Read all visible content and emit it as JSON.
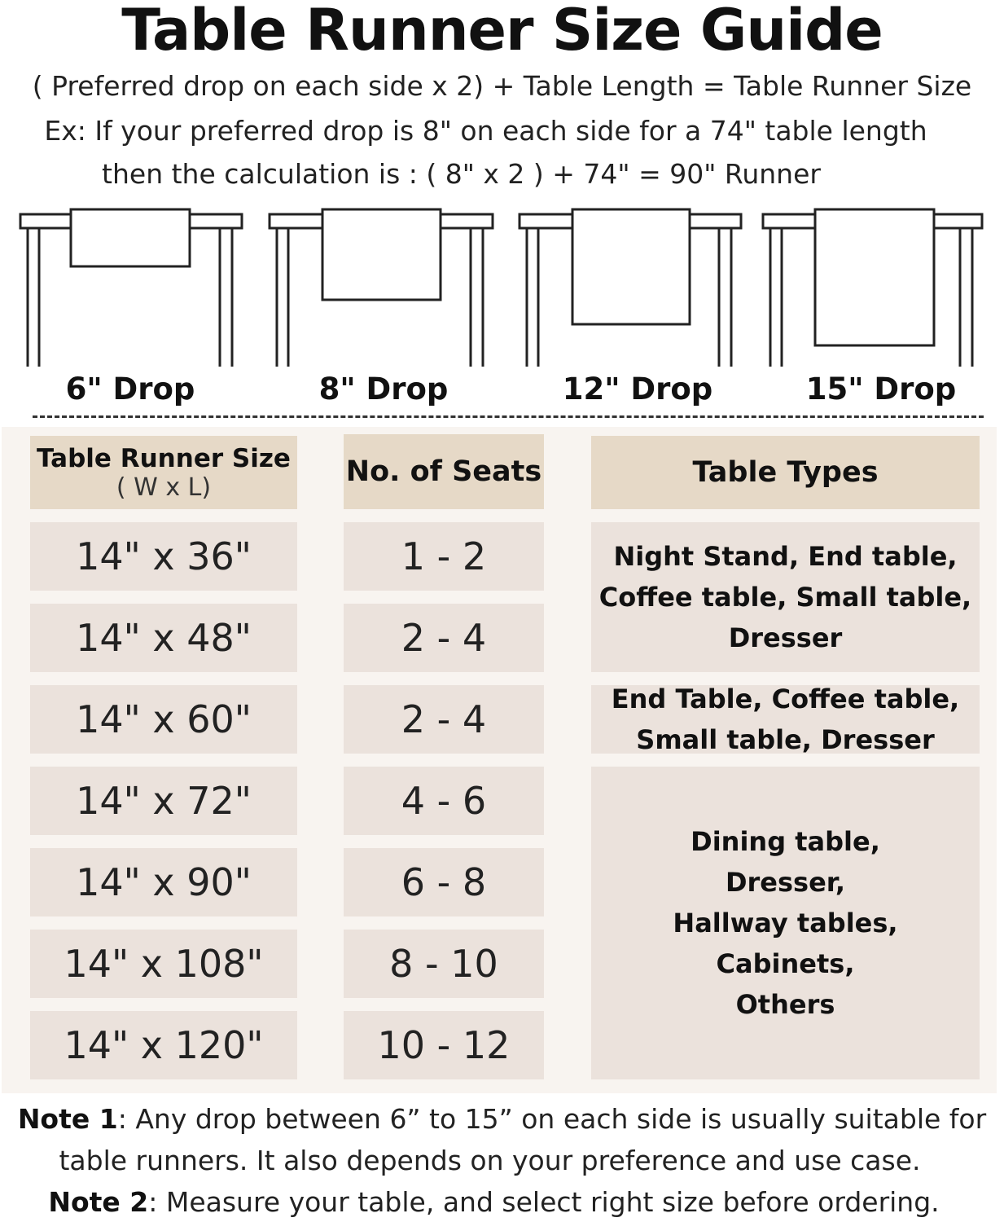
{
  "title": "Table Runner Size Guide",
  "formula": "( Preferred drop on each side x 2) + Table Length = Table Runner Size",
  "example_line1": "Ex: If your preferred drop is 8\" on each side for a 74\" table length",
  "example_line2": "then the calculation is : ( 8\" x 2 ) + 74\" = 90\" Runner",
  "drops": [
    "6\" Drop",
    "8\" Drop",
    "12\" Drop",
    "15\" Drop"
  ],
  "table": {
    "headers": {
      "size": "Table Runner Size",
      "size_sub": "( W x L)",
      "seats": "No. of Seats",
      "types": "Table Types"
    },
    "rows": [
      {
        "size": "14\" x 36\"",
        "seats": "1 - 2"
      },
      {
        "size": "14\" x 48\"",
        "seats": "2 - 4"
      },
      {
        "size": "14\" x 60\"",
        "seats": "2 - 4"
      },
      {
        "size": "14\" x 72\"",
        "seats": "4 - 6"
      },
      {
        "size": "14\" x 90\"",
        "seats": "6 - 8"
      },
      {
        "size": "14\" x 108\"",
        "seats": "8 - 10"
      },
      {
        "size": "14\" x 120\"",
        "seats": "10 - 12"
      }
    ],
    "types": [
      "Night Stand, End table, Coffee table, Small table, Dresser",
      "End Table, Coffee table, Small table, Dresser",
      "Dining table, Dresser, Hallway tables, Cabinets, Others"
    ]
  },
  "notes": {
    "note1_label": "Note 1",
    "note1_text": ": Any drop between 6” to 15” on each side is usually suitable for",
    "note1_text2": "table runners. It also depends on your preference and use case.",
    "note2_label": "Note 2",
    "note2_text": ": Measure your table, and select right size before ordering."
  },
  "colors": {
    "header_cell": "#e6d9c7",
    "body_cell": "#ebe2dc",
    "panel": "#f8f4f0"
  }
}
